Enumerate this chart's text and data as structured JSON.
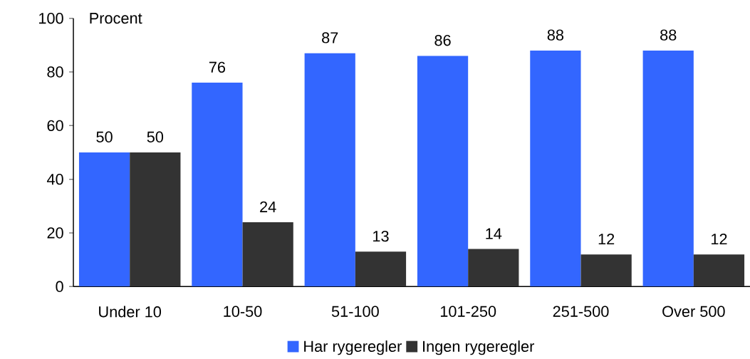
{
  "chart_data": {
    "type": "bar",
    "ylabel": "Procent",
    "categories": [
      "Under 10",
      "10-50",
      "51-100",
      "101-250",
      "251-500",
      "Over 500"
    ],
    "series": [
      {
        "name": "Har rygeregler",
        "color": "#3366ff",
        "values": [
          50,
          76,
          87,
          86,
          88,
          88
        ]
      },
      {
        "name": "Ingen rygeregler",
        "color": "#333333",
        "values": [
          50,
          24,
          13,
          14,
          12,
          12
        ]
      }
    ],
    "ylim": [
      0,
      100
    ],
    "yticks": [
      0,
      20,
      40,
      60,
      80,
      100
    ],
    "data_labels": true,
    "grid": false,
    "legend": "bottom"
  }
}
